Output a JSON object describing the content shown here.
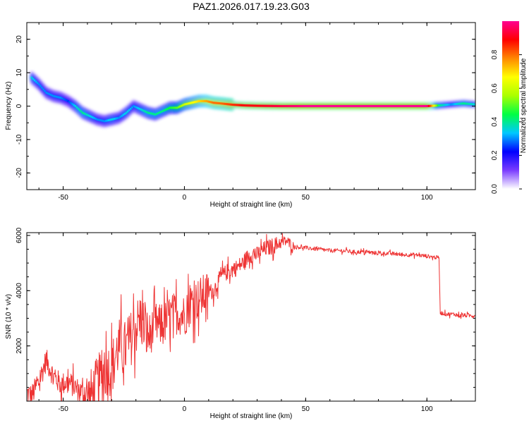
{
  "title": "PAZ1.2026.017.19.23.G03",
  "chart_data": [
    {
      "type": "heatmap",
      "title": "PAZ1.2026.017.19.23.G03",
      "xlabel": "Height of straight line (km)",
      "ylabel": "Frequency (Hz)",
      "xlim": [
        -65,
        120
      ],
      "ylim": [
        -25,
        25
      ],
      "x_ticks": [
        "-50",
        "0",
        "50",
        "100"
      ],
      "x_tick_values": [
        -50,
        0,
        50,
        100
      ],
      "y_ticks": [
        "20",
        "10",
        "0",
        "-10",
        "-20"
      ],
      "y_tick_values": [
        20,
        10,
        0,
        -10,
        -20
      ],
      "ridge": {
        "x": [
          -63,
          -60,
          -57,
          -54,
          -51,
          -48,
          -45,
          -42,
          -39,
          -36,
          -33,
          -30,
          -27,
          -24,
          -21,
          -18,
          -15,
          -12,
          -9,
          -6,
          -3,
          0,
          3,
          6,
          9,
          12,
          15,
          20,
          25,
          30,
          40,
          50,
          60,
          70,
          80,
          90,
          100,
          105,
          110,
          115,
          120
        ],
        "frequency_hz": [
          8.5,
          6.5,
          4,
          3,
          2.5,
          1.5,
          0,
          -2,
          -3,
          -4,
          -4.5,
          -4,
          -3.5,
          -2,
          0,
          -1,
          -2,
          -2.5,
          -1.5,
          -0.5,
          -0.5,
          0.5,
          1,
          1.5,
          1.5,
          1,
          0.8,
          0.4,
          0.2,
          0.1,
          0,
          0,
          0,
          0,
          0,
          0,
          0,
          0.2,
          0.5,
          0.8,
          0.5
        ],
        "normalized_amplitude": [
          0.35,
          0.3,
          0.3,
          0.3,
          0.3,
          0.25,
          0.35,
          0.4,
          0.35,
          0.3,
          0.3,
          0.35,
          0.3,
          0.35,
          0.3,
          0.35,
          0.4,
          0.4,
          0.4,
          0.45,
          0.5,
          0.6,
          0.65,
          0.7,
          0.75,
          0.8,
          0.8,
          0.85,
          0.9,
          0.9,
          0.95,
          1.0,
          1.0,
          1.0,
          1.0,
          1.0,
          1.0,
          0.4,
          0.3,
          0.4,
          0.35
        ]
      }
    },
    {
      "type": "line",
      "xlabel": "Height of straight line (km)",
      "ylabel": "SNR (10 * v/v)",
      "xlim": [
        -65,
        120
      ],
      "ylim": [
        0,
        6100
      ],
      "x_ticks": [
        "-50",
        "0",
        "50",
        "100"
      ],
      "x_tick_values": [
        -50,
        0,
        50,
        100
      ],
      "y_ticks": [
        "2000",
        "4000",
        "6000"
      ],
      "y_tick_values": [
        2000,
        4000,
        6000
      ],
      "series": [
        {
          "name": "SNR",
          "color": "#ee3333",
          "x": [
            -65,
            -63,
            -60,
            -57,
            -54,
            -51,
            -48,
            -45,
            -42,
            -39,
            -36,
            -33,
            -30,
            -27,
            -24,
            -21,
            -18,
            -15,
            -12,
            -9,
            -6,
            -3,
            0,
            3,
            6,
            9,
            12,
            15,
            18,
            21,
            24,
            27,
            30,
            33,
            36,
            39,
            42,
            45,
            50,
            55,
            60,
            65,
            70,
            75,
            80,
            85,
            90,
            95,
            100,
            104,
            105,
            105.5,
            108,
            111,
            114,
            117,
            120
          ],
          "y": [
            300,
            200,
            700,
            1500,
            900,
            600,
            700,
            500,
            300,
            100,
            600,
            1100,
            1200,
            2000,
            1900,
            2500,
            3000,
            2300,
            2800,
            2700,
            3100,
            3200,
            3100,
            3600,
            3700,
            3900,
            4000,
            4500,
            4700,
            4800,
            5000,
            5300,
            5300,
            5500,
            5600,
            5700,
            5800,
            5600,
            5550,
            5500,
            5450,
            5450,
            5400,
            5400,
            5350,
            5350,
            5300,
            5300,
            5250,
            5200,
            5200,
            3200,
            3150,
            3150,
            3100,
            3100,
            3100
          ]
        }
      ]
    },
    {
      "type": "colorbar",
      "label": "Normalized spectral amplitude",
      "range": [
        0,
        1
      ],
      "ticks": [
        "0.0",
        "0.2",
        "0.4",
        "0.6",
        "0.8"
      ],
      "tick_values": [
        0,
        0.2,
        0.4,
        0.6,
        0.8
      ],
      "colormap": [
        "#ffffff",
        "#7a3cff",
        "#0000ff",
        "#00c8ff",
        "#00ff44",
        "#aaff00",
        "#ffff00",
        "#ff8800",
        "#ff0000",
        "#ff0090"
      ]
    }
  ]
}
